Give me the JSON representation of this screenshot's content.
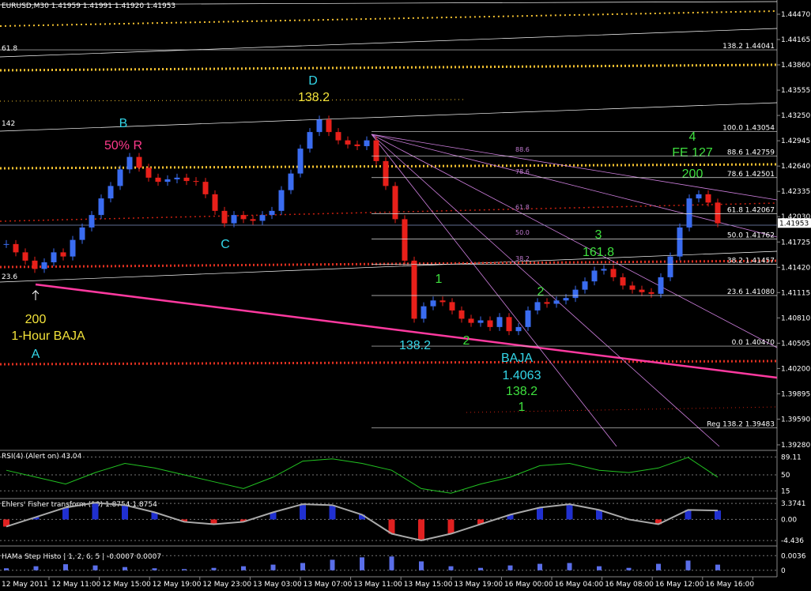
{
  "header": "EURUSD,M30  1.41959 1.41991 1.41920 1.41953",
  "price_axis": {
    "ticks": [
      {
        "value": 1.4447,
        "label": "1.44470"
      },
      {
        "value": 1.44165,
        "label": "1.44165"
      },
      {
        "value": 1.4386,
        "label": "1.43860"
      },
      {
        "value": 1.43555,
        "label": "1.43555"
      },
      {
        "value": 1.4325,
        "label": "1.43250"
      },
      {
        "value": 1.42945,
        "label": "1.42945"
      },
      {
        "value": 1.4264,
        "label": "1.42640"
      },
      {
        "value": 1.42335,
        "label": "1.42335"
      },
      {
        "value": 1.4203,
        "label": "1.42030"
      },
      {
        "value": 1.41725,
        "label": "1.41725"
      },
      {
        "value": 1.4142,
        "label": "1.41420"
      },
      {
        "value": 1.41115,
        "label": "1.41115"
      },
      {
        "value": 1.4081,
        "label": "1.40810"
      },
      {
        "value": 1.40505,
        "label": "1.40505"
      },
      {
        "value": 1.402,
        "label": "1.40200"
      },
      {
        "value": 1.39895,
        "label": "1.39895"
      },
      {
        "value": 1.3959,
        "label": "1.39590"
      },
      {
        "value": 1.3928,
        "label": "1.39280"
      }
    ],
    "current": {
      "value": 1.41953,
      "label": "1.41953"
    }
  },
  "fib_labels": [
    {
      "value": 1.44041,
      "label": "138.2 1.44041"
    },
    {
      "value": 1.43054,
      "label": "100.0 1.43054"
    },
    {
      "value": 1.42759,
      "label": "88.6 1.42759"
    },
    {
      "value": 1.42501,
      "label": "78.6 1.42501"
    },
    {
      "value": 1.42067,
      "label": "61.8 1.42067"
    },
    {
      "value": 1.41762,
      "label": "50.0 1.41762"
    },
    {
      "value": 1.41457,
      "label": "38.2 1.41457"
    },
    {
      "value": 1.4108,
      "label": "23.6 1.41080"
    },
    {
      "value": 1.4047,
      "label": "0.0 1.40470"
    },
    {
      "value": 1.39483,
      "label": "Reg 138.2 1.39483"
    }
  ],
  "fan_labels": [
    "88.6",
    "78.6",
    "61.8",
    "50.0",
    "38.2"
  ],
  "edge_labels": [
    "61.8",
    "142",
    "23.6"
  ],
  "annotations": [
    "D",
    "138.2",
    "B",
    "50% R",
    "C",
    "200",
    "1-Hour BAJA",
    "A",
    "1",
    "138.2",
    "2",
    "BAJA",
    "1.4063",
    "138.2",
    "1",
    "2",
    "3",
    "161.8",
    "4",
    "FE 127",
    "200"
  ],
  "candles": {
    "closes": [
      1.417,
      1.416,
      1.415,
      1.414,
      1.4148,
      1.416,
      1.4155,
      1.4175,
      1.419,
      1.4205,
      1.4225,
      1.424,
      1.426,
      1.4275,
      1.4262,
      1.425,
      1.4245,
      1.4248,
      1.425,
      1.4246,
      1.4245,
      1.423,
      1.421,
      1.4195,
      1.4205,
      1.42,
      1.4198,
      1.4205,
      1.421,
      1.4235,
      1.4255,
      1.4285,
      1.4305,
      1.432,
      1.4305,
      1.4295,
      1.429,
      1.4288,
      1.4295,
      1.427,
      1.424,
      1.42,
      1.415,
      1.408,
      1.4095,
      1.4102,
      1.41,
      1.409,
      1.408,
      1.4075,
      1.4078,
      1.407,
      1.4082,
      1.4065,
      1.407,
      1.409,
      1.41,
      1.4098,
      1.4102,
      1.4105,
      1.4115,
      1.4125,
      1.4138,
      1.414,
      1.413,
      1.412,
      1.4115,
      1.4112,
      1.411,
      1.413,
      1.4155,
      1.419,
      1.4225,
      1.423,
      1.422,
      1.4195
    ],
    "up": "#3a6cf0",
    "down": "#e8201a"
  },
  "rsi": {
    "title": "RSI(4) (Alert on) 43.04",
    "ylim": [
      0,
      100
    ],
    "ticks": [
      {
        "value": 89.11,
        "label": "89.11"
      },
      50,
      15
    ],
    "values": [
      60,
      45,
      30,
      55,
      75,
      65,
      50,
      35,
      20,
      45,
      80,
      85,
      75,
      60,
      20,
      10,
      30,
      45,
      70,
      75,
      60,
      55,
      65,
      88,
      45
    ],
    "color": "#22c322"
  },
  "fisher": {
    "title": "Ehlers' Fisher transform (10) 1.8754 1.8754",
    "ylim": [
      -5.4,
      4.05
    ],
    "ticks": [
      {
        "value": 3.3741,
        "label": "3.3741"
      },
      {
        "value": 0,
        "label": "0.00"
      },
      {
        "value": -4.436,
        "label": "-4.436"
      }
    ],
    "values": [
      -1.5,
      0.5,
      2.5,
      3.5,
      3,
      1.5,
      -0.5,
      -1,
      -0.5,
      1.5,
      3.2,
      3,
      1,
      -3,
      -4.4,
      -3,
      -1,
      1,
      2.5,
      3.2,
      2,
      0,
      -1,
      2,
      1.8754
    ],
    "up": "#2030d0",
    "down": "#e02020"
  },
  "hama": {
    "title": "HAMa Step Histo | 1, 2, 6, 5 | -0.0007 0.0007",
    "ylim": [
      -0.0014,
      0.0058
    ],
    "ticks": [
      0.0036,
      0
    ],
    "values": [
      0.0005,
      0.001,
      0.0015,
      0.0012,
      0.0008,
      0.0005,
      0.0003,
      0.0006,
      0.001,
      0.0014,
      0.0018,
      0.0026,
      0.0032,
      0.0034,
      0.0022,
      0.001,
      0.0006,
      0.0012,
      0.0016,
      0.0018,
      0.001,
      0.0006,
      0.0016,
      0.0024,
      0.0014
    ],
    "color": "#5a6ee8"
  },
  "time_axis": [
    "12 May 2011",
    "12 May 11:00",
    "12 May 15:00",
    "12 May 19:00",
    "12 May 23:00",
    "13 May 03:00",
    "13 May 07:00",
    "13 May 11:00",
    "13 May 15:00",
    "13 May 19:00",
    "16 May 00:00",
    "16 May 04:00",
    "16 May 08:00",
    "16 May 12:00",
    "16 May 16:00"
  ]
}
